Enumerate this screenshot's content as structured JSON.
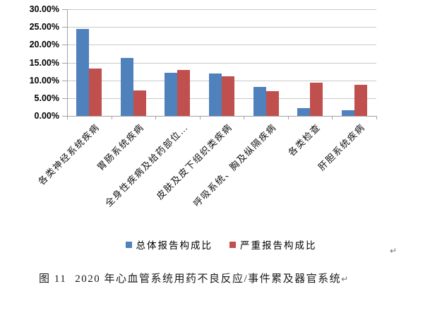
{
  "caption": {
    "figure_label": "图 11",
    "text": "2020 年心血管系统用药不良反应/事件累及器官系统",
    "return_mark": "↵"
  },
  "floating_return_mark": "↵",
  "chart_data": {
    "type": "bar",
    "title": "",
    "xlabel": "",
    "ylabel": "",
    "categories": [
      "各类神经系统疾病",
      "胃肠系统疾病",
      "全身性疾病及给药部位…",
      "皮肤及皮下组织类疾病",
      "呼吸系统、胸及纵隔疾病",
      "各类检查",
      "肝胆系统疾病"
    ],
    "series": [
      {
        "name": "总体报告构成比",
        "color": "#4F81BD",
        "values": [
          24.4,
          16.3,
          12.1,
          11.9,
          8.1,
          2.2,
          1.5
        ]
      },
      {
        "name": "严重报告构成比",
        "color": "#C0504D",
        "values": [
          13.4,
          7.1,
          13.0,
          11.2,
          6.9,
          9.4,
          8.8
        ]
      }
    ],
    "ylim": [
      0,
      30
    ],
    "y_tick_step": 5,
    "y_tick_labels": [
      "0.00%",
      "5.00%",
      "10.00%",
      "15.00%",
      "20.00%",
      "25.00%",
      "30.00%"
    ],
    "grid": true,
    "legend_position": "bottom",
    "colors": {
      "gridline": "#C9C9C9",
      "axis": "#A3A3A3",
      "bar_blue": "#4F81BD",
      "bar_red": "#C0504D"
    }
  }
}
